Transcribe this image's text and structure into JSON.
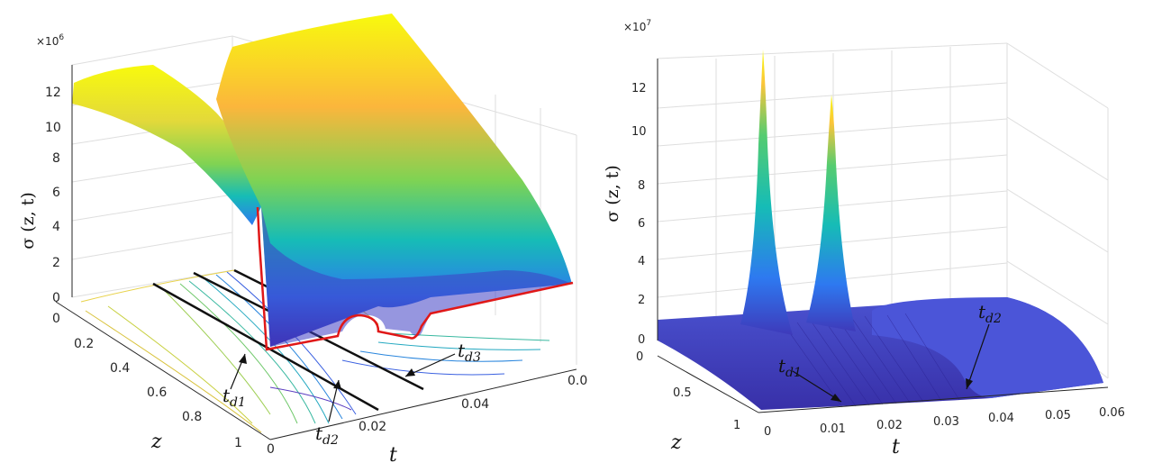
{
  "chart_data": [
    {
      "type": "surface",
      "panel": "left",
      "multiplier": "×10",
      "multiplier_exp": "6",
      "ylabel": "σ (z, t)",
      "z_label": "z",
      "t_label": "t",
      "z_ticks": [
        "0",
        "0.2",
        "0.4",
        "0.6",
        "0.8",
        "1"
      ],
      "t_ticks": [
        "0",
        "0.02",
        "0.04",
        "0.0"
      ],
      "sigma_ticks": [
        "0",
        "2",
        "4",
        "6",
        "8",
        "10",
        "12"
      ],
      "zlim": [
        0,
        1
      ],
      "sigma_range": [
        0,
        13
      ],
      "colormap": [
        "#3e26a8",
        "#2e79f0",
        "#16bcb6",
        "#7fd353",
        "#fbb63c",
        "#f8fa0d"
      ],
      "annotations": [
        {
          "label": "t",
          "sub": "d1"
        },
        {
          "label": "t",
          "sub": "d2"
        },
        {
          "label": "t",
          "sub": "d3"
        }
      ]
    },
    {
      "type": "surface",
      "panel": "right",
      "multiplier": "×10",
      "multiplier_exp": "7",
      "ylabel": "σ (z, t)",
      "z_label": "z",
      "t_label": "t",
      "z_ticks": [
        "0",
        "0.5",
        "1"
      ],
      "t_ticks": [
        "0",
        "0.01",
        "0.02",
        "0.03",
        "0.04",
        "0.05",
        "0.06"
      ],
      "sigma_ticks": [
        "0",
        "2",
        "4",
        "6",
        "8",
        "10",
        "12"
      ],
      "tlim": [
        0,
        0.06
      ],
      "zlim": [
        0,
        1
      ],
      "sigma_range": [
        0,
        14
      ],
      "peaks": [
        {
          "t": 0.008,
          "sigma": 14.0
        },
        {
          "t": 0.018,
          "sigma": 12.5
        }
      ],
      "plateau_sigma": 0.9,
      "colormap": [
        "#3e26a8",
        "#2e79f0",
        "#16bcb6",
        "#7fd353",
        "#fbb63c",
        "#f8fa0d"
      ],
      "annotations": [
        {
          "label": "t",
          "sub": "d1"
        },
        {
          "label": "t",
          "sub": "d2"
        }
      ]
    }
  ]
}
